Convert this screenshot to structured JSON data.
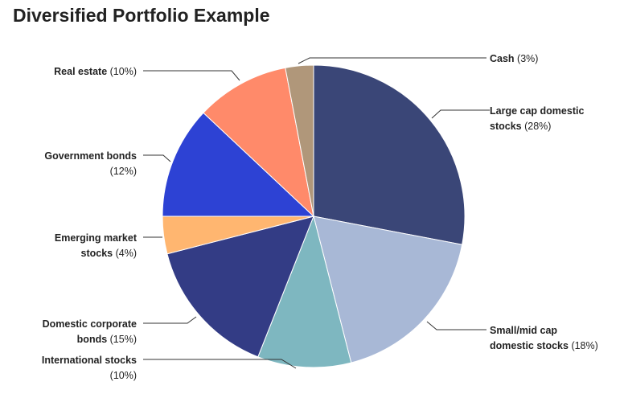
{
  "chart_data": {
    "type": "pie",
    "title": "Diversified Portfolio Example",
    "slices": [
      {
        "name": "Large cap domestic stocks",
        "value": 28,
        "value_label": "(28%)",
        "color": "#3a4677"
      },
      {
        "name": "Small/mid cap domestic stocks",
        "value": 18,
        "value_label": "(18%)",
        "color": "#a8b8d6"
      },
      {
        "name": "International stocks",
        "value": 10,
        "value_label": "(10%)",
        "color": "#7eb7c0"
      },
      {
        "name": "Domestic corporate bonds",
        "value": 15,
        "value_label": "(15%)",
        "color": "#333c85"
      },
      {
        "name": "Emerging market stocks",
        "value": 4,
        "value_label": "(4%)",
        "color": "#ffb670"
      },
      {
        "name": "Government bonds",
        "value": 12,
        "value_label": "(12%)",
        "color": "#2d42d4"
      },
      {
        "name": "Real estate",
        "value": 10,
        "value_label": "(10%)",
        "color": "#ff8a6a"
      },
      {
        "name": "Cash",
        "value": 3,
        "value_label": "(3%)",
        "color": "#b0977a"
      }
    ]
  }
}
